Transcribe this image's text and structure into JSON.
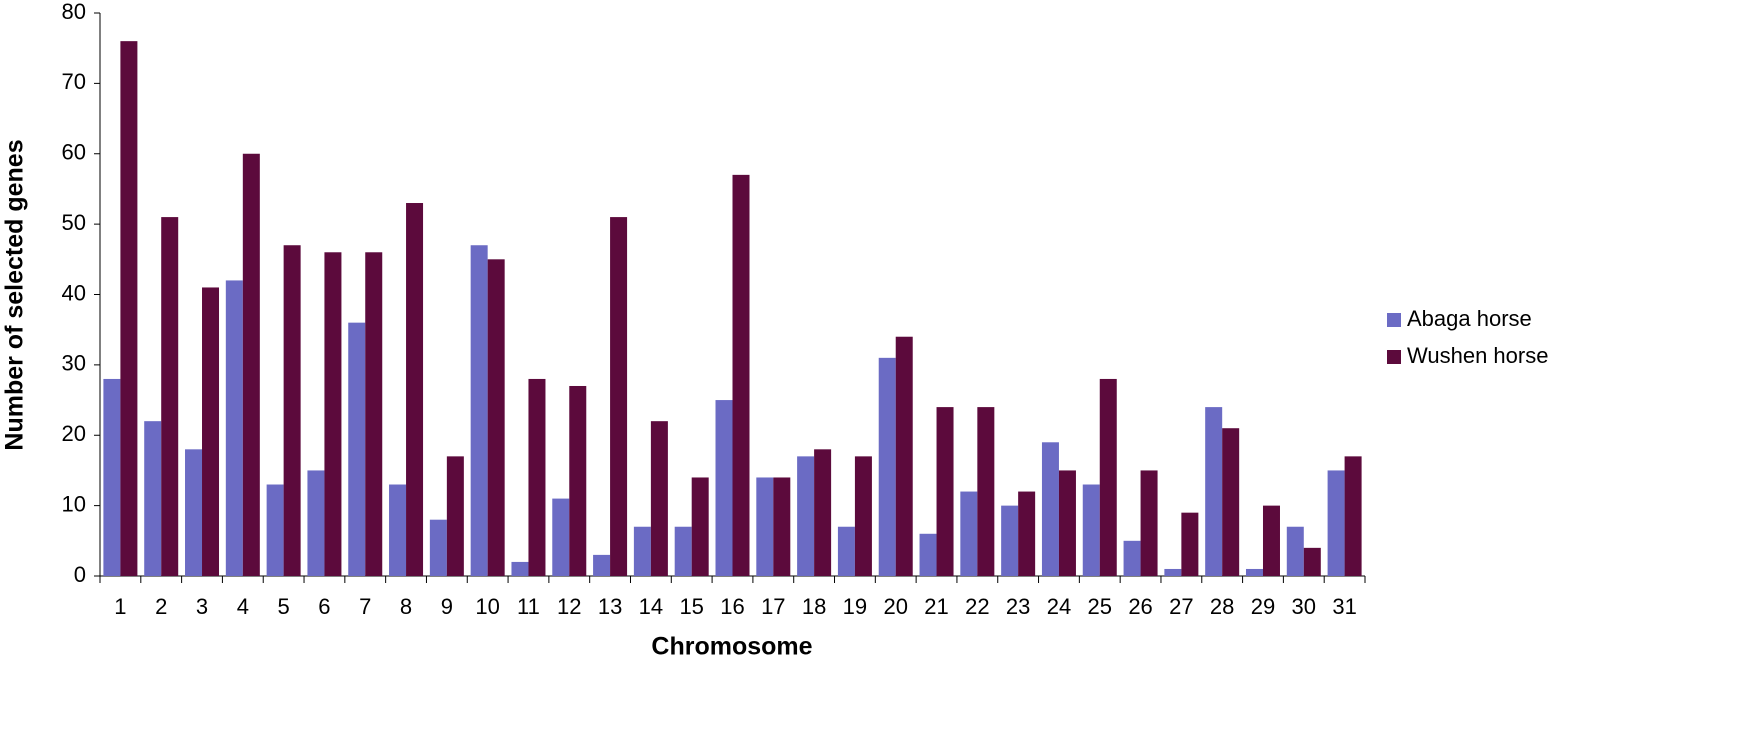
{
  "chart_data": {
    "type": "bar",
    "x_label": "Chromosome",
    "y_label": "Number of selected genes",
    "categories": [
      "1",
      "2",
      "3",
      "4",
      "5",
      "6",
      "7",
      "8",
      "9",
      "10",
      "11",
      "12",
      "13",
      "14",
      "15",
      "16",
      "17",
      "18",
      "19",
      "20",
      "21",
      "22",
      "23",
      "24",
      "25",
      "26",
      "27",
      "28",
      "29",
      "30",
      "31"
    ],
    "series": [
      {
        "name": "Abaga horse",
        "color": "#6b6bc4",
        "values": [
          28,
          22,
          18,
          42,
          13,
          15,
          36,
          13,
          8,
          47,
          2,
          11,
          3,
          7,
          7,
          25,
          14,
          17,
          7,
          31,
          6,
          12,
          10,
          19,
          13,
          5,
          1,
          24,
          1,
          7,
          15
        ]
      },
      {
        "name": "Wushen horse",
        "color": "#5c0a3c",
        "values": [
          76,
          51,
          41,
          60,
          47,
          46,
          46,
          53,
          17,
          45,
          28,
          27,
          51,
          22,
          14,
          57,
          14,
          18,
          17,
          34,
          24,
          24,
          12,
          15,
          28,
          15,
          9,
          21,
          10,
          4,
          17
        ]
      }
    ],
    "ylim": [
      0,
      80
    ],
    "yticks": [
      0,
      10,
      20,
      30,
      40,
      50,
      60,
      70,
      80
    ],
    "grid": false,
    "legend": "right"
  }
}
